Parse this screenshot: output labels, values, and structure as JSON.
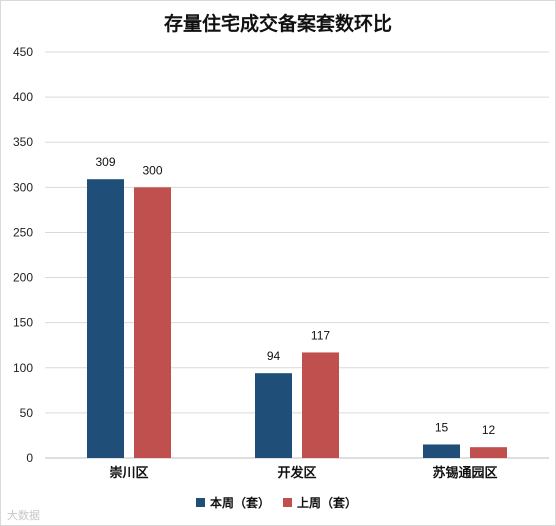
{
  "chart_data": {
    "type": "bar",
    "title": "存量住宅成交备案套数环比",
    "categories": [
      "崇川区",
      "开发区",
      "苏锡通园区"
    ],
    "series": [
      {
        "name": "本周（套）",
        "values": [
          309,
          94,
          15
        ],
        "color": "#1f4e79"
      },
      {
        "name": "上周（套）",
        "values": [
          300,
          117,
          12
        ],
        "color": "#c0504d"
      }
    ],
    "ylim": [
      0,
      450
    ],
    "yticks": [
      0,
      50,
      100,
      150,
      200,
      250,
      300,
      350,
      400,
      450
    ],
    "grid": true,
    "legend": "bottom",
    "xlabel": "",
    "ylabel": ""
  },
  "watermark": "大数据"
}
